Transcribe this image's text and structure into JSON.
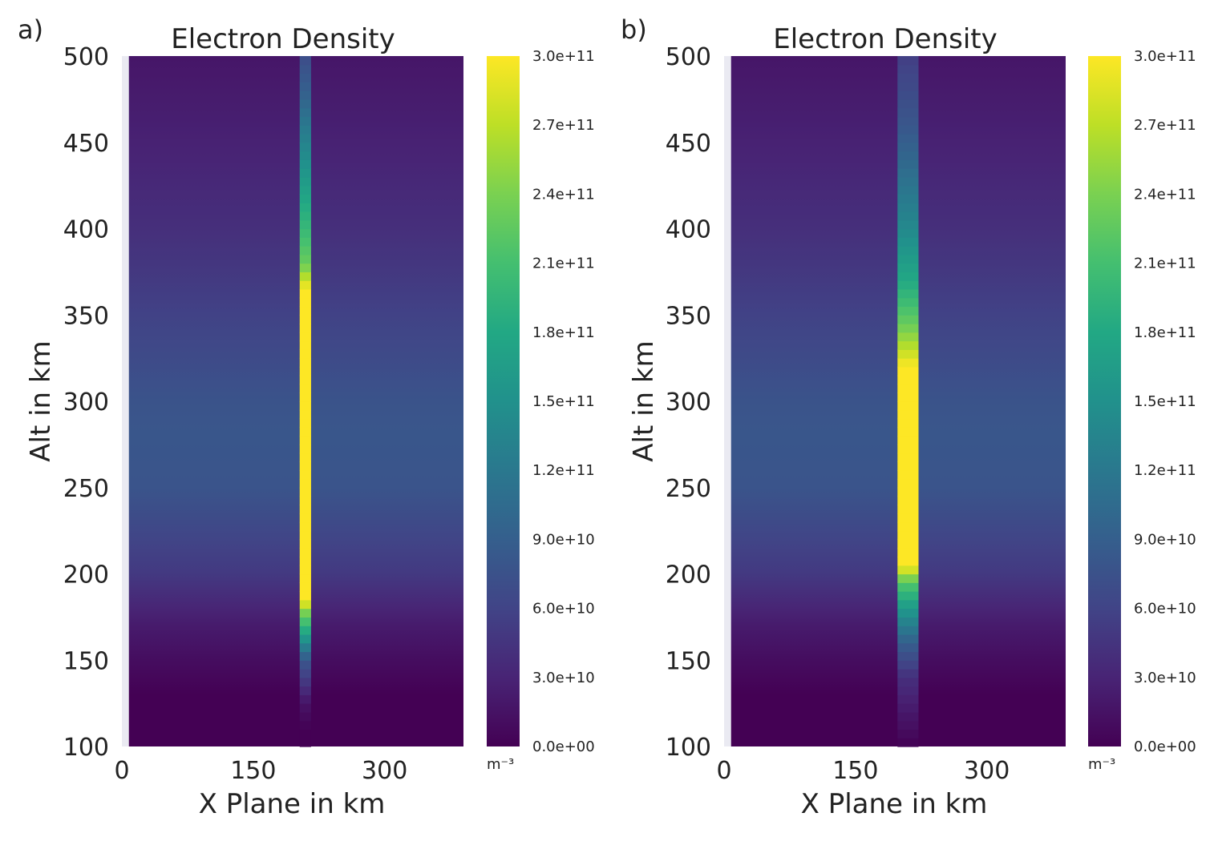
{
  "chart_data": [
    {
      "panel_label": "a)",
      "type": "heatmap",
      "title": "Electron Density",
      "xlabel": "X Plane in km",
      "ylabel": "Alt in km",
      "xlim": [
        0,
        390
      ],
      "ylim": [
        100,
        500
      ],
      "x_ticks": [
        "0",
        "150",
        "300"
      ],
      "y_ticks": [
        "100",
        "150",
        "200",
        "250",
        "300",
        "350",
        "400",
        "450",
        "500"
      ],
      "colorscale": "viridis",
      "color_range": [
        0,
        300000000000.0
      ],
      "colorbar_ticks": [
        "0.0e+00",
        "3.0e+10",
        "6.0e+10",
        "9.0e+10",
        "1.2e+11",
        "1.5e+11",
        "1.8e+11",
        "2.1e+11",
        "2.4e+11",
        "2.7e+11",
        "3.0e+11"
      ],
      "colorbar_unit": "m⁻³",
      "data_x_range": [
        8,
        390
      ],
      "background_profile": [
        [
          100,
          0.0
        ],
        [
          130,
          0.0
        ],
        [
          150,
          10000000000.0
        ],
        [
          170,
          22000000000.0
        ],
        [
          185,
          35000000000.0
        ],
        [
          200,
          50000000000.0
        ],
        [
          250,
          78000000000.0
        ],
        [
          280,
          80000000000.0
        ],
        [
          300,
          77000000000.0
        ],
        [
          350,
          58000000000.0
        ],
        [
          400,
          40000000000.0
        ],
        [
          450,
          28000000000.0
        ],
        [
          500,
          18000000000.0
        ]
      ],
      "beam": {
        "x_range": [
          203,
          216
        ],
        "profile": [
          [
            100,
            0.0
          ],
          [
            110,
            0.0
          ],
          [
            125,
            15000000000.0
          ],
          [
            150,
            80000000000.0
          ],
          [
            165,
            170000000000.0
          ],
          [
            178,
            240000000000.0
          ],
          [
            185,
            300000000000.0
          ],
          [
            365,
            300000000000.0
          ],
          [
            380,
            230000000000.0
          ],
          [
            400,
            200000000000.0
          ],
          [
            430,
            160000000000.0
          ],
          [
            460,
            120000000000.0
          ],
          [
            480,
            90000000000.0
          ],
          [
            500,
            70000000000.0
          ]
        ]
      }
    },
    {
      "panel_label": "b)",
      "type": "heatmap",
      "title": "Electron Density",
      "xlabel": "X Plane in km",
      "ylabel": "Alt in km",
      "xlim": [
        0,
        390
      ],
      "ylim": [
        100,
        500
      ],
      "x_ticks": [
        "0",
        "150",
        "300"
      ],
      "y_ticks": [
        "100",
        "150",
        "200",
        "250",
        "300",
        "350",
        "400",
        "450",
        "500"
      ],
      "colorscale": "viridis",
      "color_range": [
        0,
        300000000000.0
      ],
      "colorbar_ticks": [
        "0.0e+00",
        "3.0e+10",
        "6.0e+10",
        "9.0e+10",
        "1.2e+11",
        "1.5e+11",
        "1.8e+11",
        "2.1e+11",
        "2.4e+11",
        "2.7e+11",
        "3.0e+11"
      ],
      "colorbar_unit": "m⁻³",
      "data_x_range": [
        8,
        390
      ],
      "background_profile": [
        [
          100,
          0.0
        ],
        [
          130,
          0.0
        ],
        [
          150,
          10000000000.0
        ],
        [
          170,
          22000000000.0
        ],
        [
          185,
          35000000000.0
        ],
        [
          200,
          50000000000.0
        ],
        [
          250,
          78000000000.0
        ],
        [
          280,
          80000000000.0
        ],
        [
          300,
          77000000000.0
        ],
        [
          350,
          58000000000.0
        ],
        [
          400,
          40000000000.0
        ],
        [
          450,
          28000000000.0
        ],
        [
          500,
          18000000000.0
        ]
      ],
      "beam": {
        "x_range": [
          198,
          222
        ],
        "profile": [
          [
            100,
            0.0
          ],
          [
            110,
            10000000000.0
          ],
          [
            140,
            40000000000.0
          ],
          [
            160,
            90000000000.0
          ],
          [
            180,
            160000000000.0
          ],
          [
            195,
            220000000000.0
          ],
          [
            205,
            300000000000.0
          ],
          [
            320,
            300000000000.0
          ],
          [
            345,
            230000000000.0
          ],
          [
            370,
            180000000000.0
          ],
          [
            400,
            140000000000.0
          ],
          [
            430,
            110000000000.0
          ],
          [
            460,
            80000000000.0
          ],
          [
            500,
            55000000000.0
          ]
        ]
      }
    }
  ]
}
